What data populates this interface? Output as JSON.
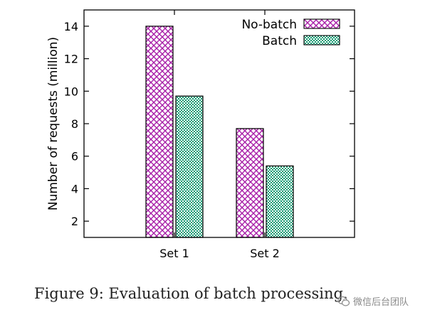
{
  "chart_data": {
    "type": "bar",
    "categories": [
      "Set 1",
      "Set 2"
    ],
    "series": [
      {
        "name": "No-batch",
        "values": [
          14.0,
          7.7
        ],
        "color": "#a81ea8",
        "pattern": "crosshatch"
      },
      {
        "name": "Batch",
        "values": [
          9.7,
          5.4
        ],
        "color": "#139a72",
        "pattern": "dots"
      }
    ],
    "xlabel": "",
    "ylabel": "Number of requests (million)",
    "ylim": [
      1,
      15
    ],
    "yticks": [
      2,
      4,
      6,
      8,
      10,
      12,
      14
    ],
    "grid": false,
    "legend_position": "top-right"
  },
  "caption": "Figure 9: Evaluation of batch processing.",
  "watermark": {
    "text": "微信后台团队",
    "icon": "wechat-icon"
  }
}
